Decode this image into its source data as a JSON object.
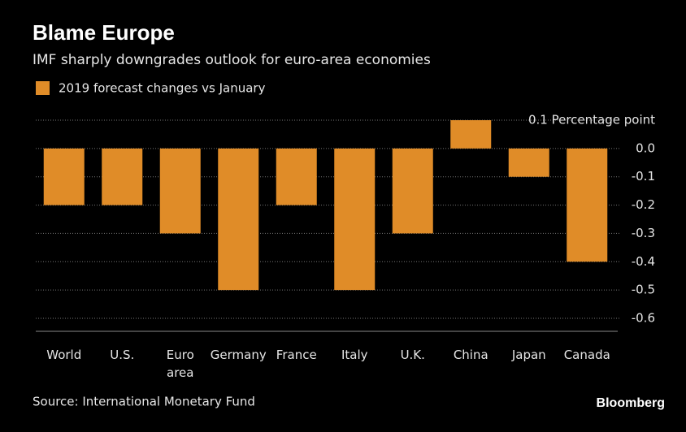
{
  "chart_data": {
    "type": "bar",
    "title": "Blame Europe",
    "subtitle": "IMF sharply downgrades outlook for euro-area economies",
    "legend": "2019 forecast changes vs January",
    "source": "Source: International Monetary Fund",
    "brand": "Bloomberg",
    "categories": [
      "World",
      "U.S.",
      "Euro area",
      "Germany",
      "France",
      "Italy",
      "U.K.",
      "China",
      "Japan",
      "Canada"
    ],
    "values": [
      -0.2,
      -0.2,
      -0.3,
      -0.5,
      -0.2,
      -0.5,
      -0.3,
      0.1,
      -0.1,
      -0.4
    ],
    "color": "#e08c28",
    "ylim": [
      -0.6,
      0.1
    ],
    "yticks": [
      {
        "value": 0.1,
        "label": "0.1 Percentage point"
      },
      {
        "value": 0,
        "label": "0.0"
      },
      -0.1,
      -0.2,
      -0.3,
      -0.4,
      -0.5,
      -0.6
    ],
    "grid": true
  }
}
